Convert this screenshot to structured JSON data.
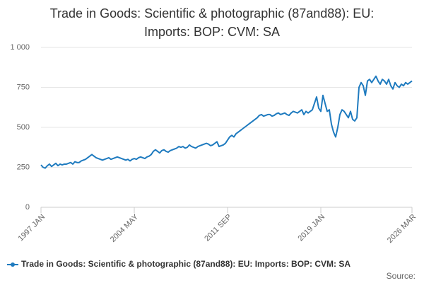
{
  "chart_data": {
    "type": "line",
    "title": "Trade in Goods: Scientific & photographic (87and88): EU: Imports: BOP: CVM: SA",
    "source": "Source:",
    "legend": "bottom",
    "grid": true,
    "categories": [
      "1997 JAN",
      null,
      null,
      null,
      null,
      null,
      null,
      null,
      null,
      null,
      null,
      null,
      null,
      null,
      null,
      null,
      null,
      null,
      null,
      null,
      null,
      null,
      null,
      null,
      null,
      null,
      null,
      null,
      null,
      null,
      null,
      null,
      null,
      null,
      null,
      null,
      null,
      null,
      null,
      null,
      null,
      null,
      null,
      null,
      "2004 MAY",
      null,
      null,
      null,
      null,
      null,
      null,
      null,
      null,
      null,
      null,
      null,
      null,
      null,
      null,
      null,
      null,
      null,
      null,
      null,
      null,
      null,
      null,
      null,
      null,
      null,
      null,
      null,
      null,
      null,
      null,
      null,
      null,
      null,
      null,
      null,
      null,
      null,
      null,
      null,
      null,
      null,
      null,
      null,
      "2011 SEP",
      null,
      null,
      null,
      null,
      null,
      null,
      null,
      null,
      null,
      null,
      null,
      null,
      null,
      null,
      null,
      null,
      null,
      null,
      null,
      null,
      null,
      null,
      null,
      null,
      null,
      null,
      null,
      null,
      null,
      null,
      null,
      null,
      null,
      null,
      null,
      null,
      null,
      null,
      null,
      null,
      null,
      null,
      null,
      "2019 JAN",
      null,
      null,
      null,
      null,
      null,
      null,
      null,
      null,
      null,
      null,
      null,
      null,
      null,
      null,
      null,
      null,
      null,
      null,
      null,
      null,
      null,
      null,
      null,
      null,
      null,
      null,
      null,
      null,
      null,
      null,
      null,
      null,
      null,
      null,
      null,
      null,
      null,
      null,
      null,
      null,
      null,
      null,
      "2026 MAR"
    ],
    "series": [
      {
        "name": "Trade in Goods: Scientific & photographic (87and88): EU: Imports: BOP: CVM: SA",
        "color": "#1f7bbf",
        "values": [
          265,
          250,
          245,
          260,
          270,
          255,
          265,
          275,
          260,
          270,
          265,
          270,
          270,
          275,
          280,
          270,
          285,
          280,
          280,
          290,
          295,
          300,
          310,
          320,
          330,
          320,
          310,
          305,
          300,
          295,
          300,
          305,
          310,
          300,
          305,
          310,
          315,
          310,
          305,
          300,
          295,
          300,
          290,
          300,
          305,
          300,
          310,
          315,
          310,
          305,
          315,
          320,
          330,
          350,
          360,
          350,
          340,
          355,
          360,
          350,
          345,
          355,
          360,
          365,
          370,
          380,
          375,
          380,
          370,
          375,
          390,
          380,
          375,
          370,
          380,
          385,
          390,
          395,
          400,
          395,
          385,
          390,
          400,
          410,
          380,
          385,
          390,
          400,
          420,
          440,
          450,
          440,
          460,
          470,
          480,
          490,
          500,
          510,
          520,
          530,
          540,
          550,
          560,
          575,
          580,
          570,
          575,
          580,
          580,
          570,
          575,
          585,
          590,
          580,
          585,
          590,
          580,
          575,
          590,
          600,
          595,
          590,
          600,
          610,
          580,
          600,
          590,
          600,
          610,
          650,
          690,
          620,
          600,
          700,
          650,
          600,
          610,
          520,
          470,
          440,
          500,
          580,
          610,
          600,
          580,
          560,
          600,
          550,
          540,
          560,
          750,
          780,
          760,
          700,
          790,
          800,
          780,
          800,
          820,
          790,
          770,
          800,
          790,
          770,
          800,
          760,
          740,
          780,
          760,
          750,
          770,
          760,
          780,
          770,
          780,
          790
        ]
      }
    ],
    "ylim": [
      0,
      1000
    ],
    "yticks": [
      0,
      250,
      500,
      750,
      {
        "value": 1000,
        "label": "1 000"
      }
    ]
  }
}
